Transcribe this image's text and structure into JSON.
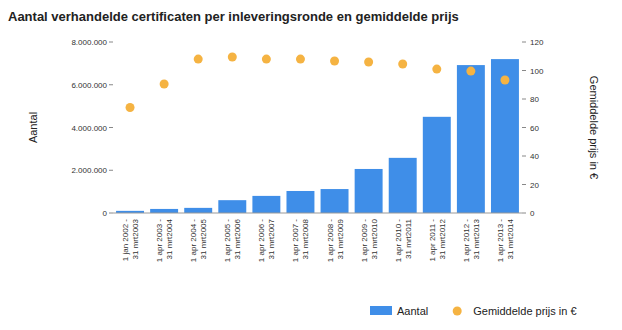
{
  "chart_data": {
    "type": "bar",
    "title": "Aantal verhandelde certificaten per inleveringsronde en gemiddelde prijs",
    "y_label": "Aantal",
    "y2_label": "Gemiddelde prijs in €",
    "categories": [
      "1 jan 2002 - 31 mrt2003",
      "1 apr 2003 - 31 mrt2004",
      "1 apr 2004 - 31 mrt2005",
      "1 apr 2005 - 31 mrt2006",
      "1 apr 2006 - 31 mrt2007",
      "1 apr 2007 - 31 mrt2008",
      "1 apr 2008 - 31 mrt2009",
      "1 apr 2009 - 31 mrt2010",
      "1 apr 2010 - 31 mrt2011",
      "1 apr 2011 - 31 mrt2012",
      "1 apr 2012 - 31 mrt2013",
      "1 apr 2013 - 31 mrt2014"
    ],
    "series": [
      {
        "name": "Aantal",
        "type": "bar",
        "color": "#3f8ee8",
        "values": [
          100000,
          190000,
          240000,
          600000,
          800000,
          1030000,
          1120000,
          2060000,
          2580000,
          4500000,
          6920000,
          7200000
        ]
      },
      {
        "name": "Gemiddelde prijs in €",
        "type": "scatter",
        "marker": "circle",
        "color": "#f5b342",
        "axis": "y2",
        "values": [
          74,
          90.5,
          108,
          109.5,
          108,
          108,
          106.7,
          106,
          104.6,
          101,
          99.6,
          93.3
        ]
      }
    ],
    "ylim": [
      0,
      8000000
    ],
    "yticks": [
      0,
      {
        "value": 2000000,
        "label": "2.000.000"
      },
      {
        "value": 4000000,
        "label": "4.000.000"
      },
      {
        "value": 6000000,
        "label": "6.000.000"
      },
      {
        "value": 8000000,
        "label": "8.000.000"
      }
    ],
    "y2lim": [
      0,
      120
    ],
    "y2ticks": [
      0,
      20,
      40,
      60,
      80,
      100,
      120
    ],
    "grid": false,
    "legend": "bottom-right"
  }
}
